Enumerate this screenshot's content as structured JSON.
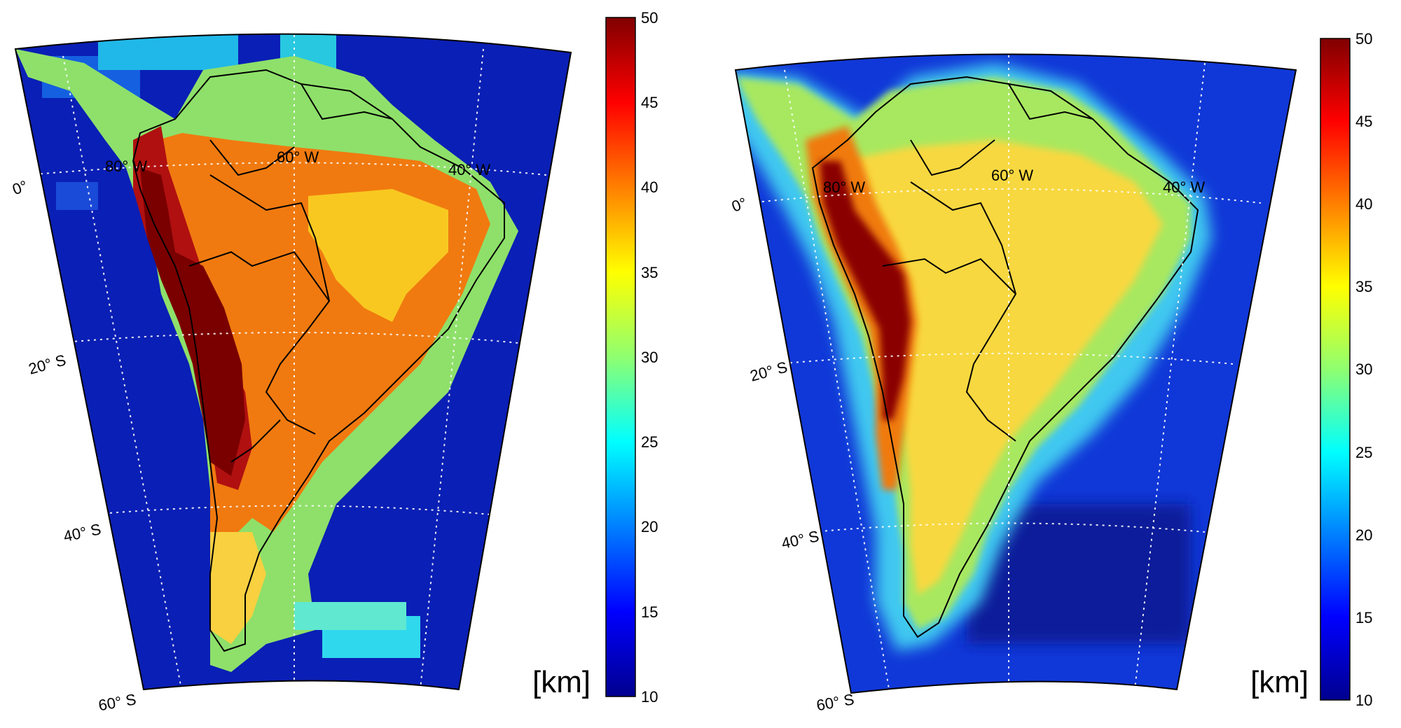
{
  "maps": [
    {
      "id": "left",
      "style": "coarse-blocks",
      "meridian_labels": [
        "80° W",
        "60° W",
        "40° W"
      ],
      "parallel_labels": [
        "0°",
        "20° S",
        "40° S",
        "60° S"
      ],
      "colorbar": {
        "min": 10,
        "max": 50,
        "ticks": [
          "50",
          "45",
          "40",
          "35",
          "30",
          "25",
          "20",
          "15",
          "10"
        ],
        "unit": "[km]"
      }
    },
    {
      "id": "right",
      "style": "smooth",
      "meridian_labels": [
        "80° W",
        "60° W",
        "40° W"
      ],
      "parallel_labels": [
        "0°",
        "20° S",
        "40° S",
        "60° S"
      ],
      "colorbar": {
        "min": 10,
        "max": 50,
        "ticks": [
          "50",
          "45",
          "40",
          "35",
          "30",
          "25",
          "20",
          "15",
          "10"
        ],
        "unit": "[km]"
      }
    }
  ],
  "colors": {
    "ocean": "#0a1fb5",
    "land_high": "#7a0000",
    "land_mid": "#f07a10",
    "coast": "#8ee06a"
  }
}
